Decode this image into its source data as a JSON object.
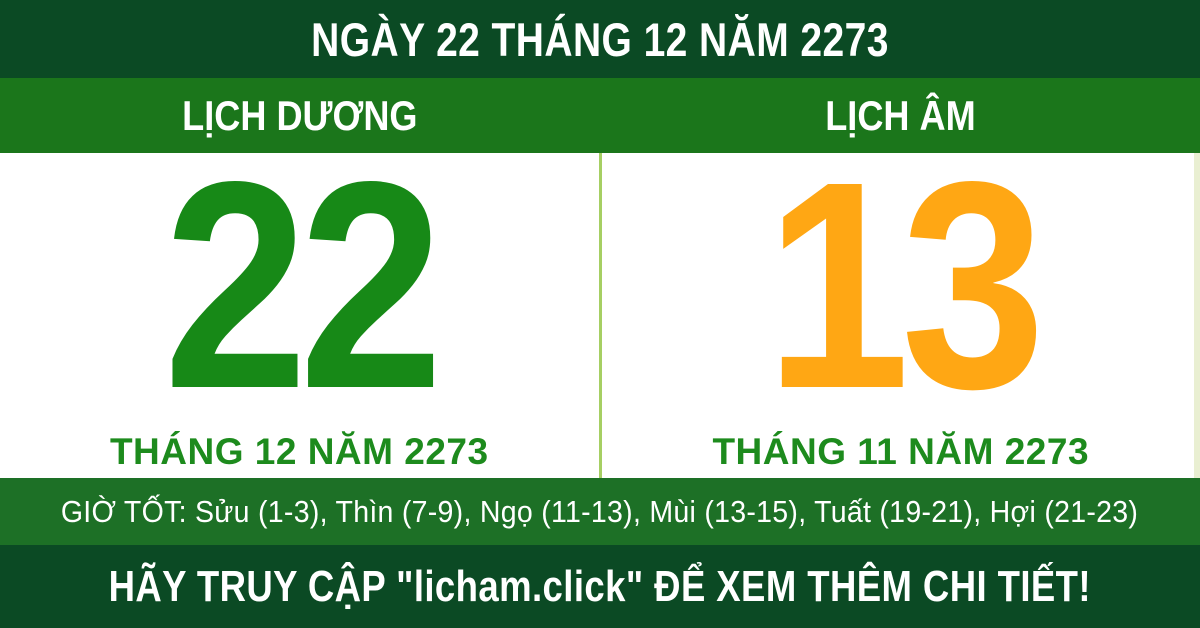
{
  "colors": {
    "dark_green": "#0b4a24",
    "green": "#1b761b",
    "hours_green": "#1d7026",
    "number_green": "#178917",
    "month_green": "#1d8b1d",
    "orange": "#ffa714",
    "divider": "#a6cf63",
    "edge": "#e9efd2",
    "white": "#ffffff"
  },
  "top_bar": {
    "title": "NGÀY 22 THÁNG 12 NĂM 2273"
  },
  "calendar": {
    "solar": {
      "header": "LỊCH DƯƠNG",
      "day": "22",
      "month_year": "THÁNG 12 NĂM 2273"
    },
    "lunar": {
      "header": "LỊCH ÂM",
      "day": "13",
      "month_year": "THÁNG 11 NĂM 2273"
    }
  },
  "good_hours": {
    "text": "GIỜ TỐT: Sửu (1-3), Thìn (7-9), Ngọ (11-13), Mùi (13-15), Tuất (19-21), Hợi (21-23)"
  },
  "footer": {
    "text": "HÃY TRUY CẬP \"licham.click\" ĐỂ XEM THÊM CHI TIẾT!"
  }
}
